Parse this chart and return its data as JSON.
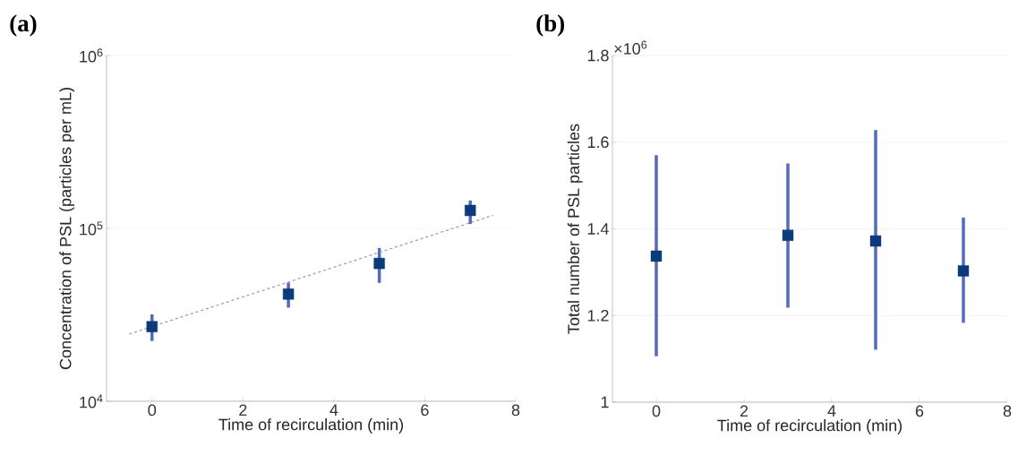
{
  "chart_data": [
    {
      "type": "scatter",
      "title": "(a)",
      "xlabel": "Time of recirculation (min)",
      "ylabel": "Concentration of PSL (particles per mL)",
      "log": "y",
      "grid": "y",
      "marker": "square",
      "xlim": [
        -1,
        8
      ],
      "xticks": [
        0,
        2,
        4,
        6,
        8
      ],
      "ylim": [
        10000,
        1000000
      ],
      "yticks": [
        {
          "value": 10000,
          "label": "10$^{4}$"
        },
        {
          "value": 100000,
          "label": "10$^{5}$"
        },
        {
          "value": 1000000,
          "label": "10$^{6}$"
        }
      ],
      "series": [
        {
          "color": "#0d3a7a",
          "x": [
            0,
            3,
            5,
            7
          ],
          "values": [
            27000,
            41700,
            62700,
            127000
          ],
          "errors": [
            [
              22300,
              31800
            ],
            [
              34800,
              48600
            ],
            [
              48400,
              77000
            ],
            [
              106000,
              145000
            ]
          ]
        },
        {
          "type": "line",
          "color": "#a0a0a0",
          "line_style": "dashed",
          "marker": "none",
          "x": [
            -0.5,
            7.5
          ],
          "values": [
            24500,
            119000
          ]
        }
      ]
    },
    {
      "type": "scatter",
      "title": "(b)",
      "xlabel": "Time of recirculation (min)",
      "ylabel": "Total number of PSL particles",
      "grid": "y",
      "marker": "square",
      "xlim": [
        -1,
        8
      ],
      "xticks": [
        0,
        2,
        4,
        6,
        8
      ],
      "ylim": [
        1,
        1.8
      ],
      "yticks": [
        1,
        1.2,
        1.4,
        1.6,
        1.8
      ],
      "annotations": [
        "×10$^{6}$"
      ],
      "series": [
        {
          "color": "#0d3a7a",
          "x": [
            0,
            3,
            5,
            7
          ],
          "values": [
            1.337,
            1.385,
            1.372,
            1.303
          ],
          "errors": [
            [
              1.106,
              1.57
            ],
            [
              1.218,
              1.551
            ],
            [
              1.121,
              1.628
            ],
            [
              1.183,
              1.426
            ]
          ]
        }
      ]
    }
  ]
}
